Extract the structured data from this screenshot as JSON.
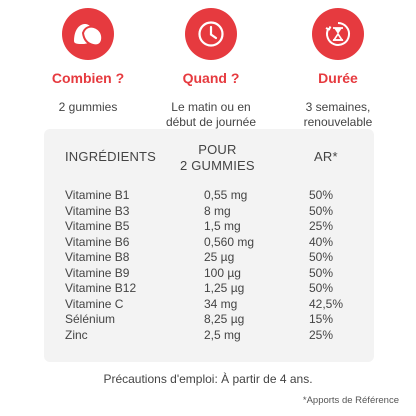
{
  "colors": {
    "accent": "#e63a3f",
    "card_bg": "#f3f3f3"
  },
  "info_columns": [
    {
      "icon": "gummies-icon",
      "title": "Combien ?",
      "desc": [
        "2 gummies"
      ]
    },
    {
      "icon": "clock-icon",
      "title": "Quand ?",
      "desc": [
        "Le matin ou en",
        "début de journée"
      ]
    },
    {
      "icon": "hourglass-icon",
      "title": "Durée",
      "desc": [
        "3 semaines,",
        "renouvelable"
      ]
    }
  ],
  "table": {
    "headers": {
      "ingredients": "INGRÉDIENTS",
      "pour_line1": "POUR",
      "pour_line2": "2 GUMMIES",
      "ar": "AR*"
    },
    "rows": [
      {
        "name": "Vitamine B1",
        "qty": "0,55 mg",
        "ar": "50%"
      },
      {
        "name": "Vitamine B3",
        "qty": "8 mg",
        "ar": "50%"
      },
      {
        "name": "Vitamine B5",
        "qty": "1,5 mg",
        "ar": "25%"
      },
      {
        "name": "Vitamine B6",
        "qty": "0,560 mg",
        "ar": "40%"
      },
      {
        "name": "Vitamine B8",
        "qty": "25 µg",
        "ar": "50%"
      },
      {
        "name": "Vitamine B9",
        "qty": "100 µg",
        "ar": "50%"
      },
      {
        "name": "Vitamine B12",
        "qty": "1,25 µg",
        "ar": "50%"
      },
      {
        "name": "Vitamine C",
        "qty": "34 mg",
        "ar": "42,5%"
      },
      {
        "name": "Sélénium",
        "qty": "8,25 µg",
        "ar": "15%"
      },
      {
        "name": "Zinc",
        "qty": "2,5 mg",
        "ar": "25%"
      }
    ]
  },
  "precautions": "Précautions d'emploi: À partir de 4 ans.",
  "footnote": "*Apports de Référence"
}
